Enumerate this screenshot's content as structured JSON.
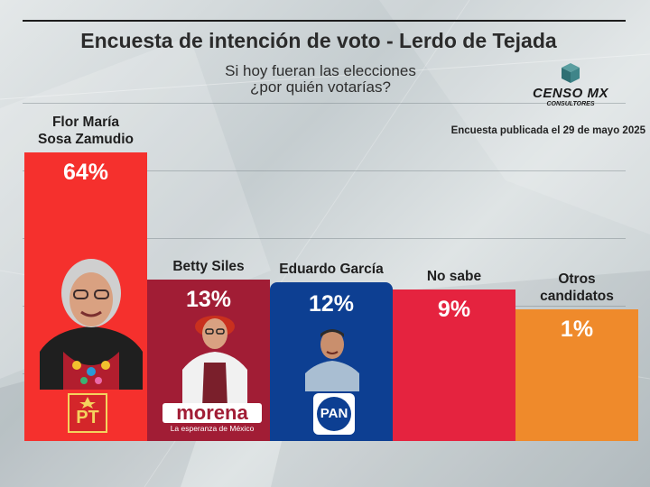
{
  "header": {
    "title": "Encuesta de intención de voto - Lerdo de Tejada",
    "subtitle_line1": "Si hoy fueran las elecciones",
    "subtitle_line2": "¿por quién votarías?",
    "published": "Encuesta publicada el 29 de mayo 2025"
  },
  "logo": {
    "name": "CENSO MX",
    "tagline": "CONSULTORES",
    "icon": "cube-logo-icon"
  },
  "colors": {
    "pt_red": "#f5302d",
    "morena_maroon": "#a11d35",
    "pan_blue": "#0d3f92",
    "no_sabe_red": "#e5233f",
    "otros_orange": "#ef8a2b"
  },
  "parties": {
    "pt": "PT",
    "morena": "morena",
    "morena_tagline": "La esperanza de México",
    "pan": "PAN"
  },
  "chart_data": {
    "type": "bar",
    "title": "Encuesta de intención de voto - Lerdo de Tejada",
    "categories": [
      "Flor María Sosa Zamudio",
      "Betty Siles",
      "Eduardo García",
      "No sabe",
      "Otros candidatos"
    ],
    "label_lines": [
      [
        "Flor María",
        "Sosa Zamudio"
      ],
      [
        "Betty Siles"
      ],
      [
        "Eduardo García"
      ],
      [
        "No sabe"
      ],
      [
        "Otros",
        "candidatos"
      ]
    ],
    "values": [
      64,
      13,
      12,
      9,
      1
    ],
    "value_labels": [
      "64%",
      "13%",
      "12%",
      "9%",
      "1%"
    ],
    "unit": "%",
    "colors": [
      "#f5302d",
      "#a11d35",
      "#0d3f92",
      "#e5233f",
      "#ef8a2b"
    ],
    "grid": true,
    "legend": "none"
  }
}
